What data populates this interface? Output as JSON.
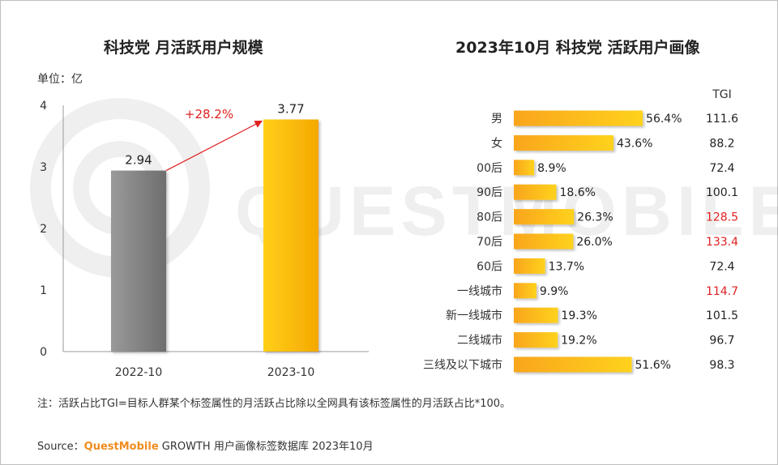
{
  "left": {
    "title": "科技党 月活跃用户规模",
    "unit": "单位：亿"
  },
  "right": {
    "title": "2023年10月 科技党 活跃用户画像",
    "tgi_header": "TGI"
  },
  "watermark": "QUESTMOBILE",
  "note": "注：活跃占比TGI=目标人群某个标签属性的月活跃占比除以全网具有该标签属性的月活跃占比*100。",
  "source": {
    "prefix": "Source：",
    "brand": "QuestMobile",
    "text": " GROWTH 用户画像标签数据库 2023年10月"
  },
  "colors": {
    "grey_bar": "#8c8c8c",
    "yellow_bar": "#ffc000",
    "orange": "#f5a623",
    "red": "#e02020"
  },
  "chart_data": [
    {
      "type": "bar",
      "title": "科技党 月活跃用户规模",
      "ylabel": "单位：亿",
      "categories": [
        "2022-10",
        "2023-10"
      ],
      "values": [
        2.94,
        3.77
      ],
      "value_labels": [
        "2.94",
        "3.77"
      ],
      "ylim": [
        0,
        4
      ],
      "yticks": [
        0,
        1,
        2,
        3,
        4
      ],
      "growth_annotation": "+28.2%"
    },
    {
      "type": "bar",
      "orientation": "horizontal",
      "title": "2023年10月 科技党 活跃用户画像",
      "categories": [
        "男",
        "女",
        "00后",
        "90后",
        "80后",
        "70后",
        "60后",
        "一线城市",
        "新一线城市",
        "二线城市",
        "三线及以下城市"
      ],
      "values": [
        56.4,
        43.6,
        8.9,
        18.6,
        26.3,
        26.0,
        13.7,
        9.9,
        19.3,
        19.2,
        51.6
      ],
      "value_labels": [
        "56.4%",
        "43.6%",
        "8.9%",
        "18.6%",
        "26.3%",
        "26.0%",
        "13.7%",
        "9.9%",
        "19.3%",
        "19.2%",
        "51.6%"
      ],
      "tgi": [
        "111.6",
        "88.2",
        "72.4",
        "100.1",
        "128.5",
        "133.4",
        "72.4",
        "114.7",
        "101.5",
        "96.7",
        "98.3"
      ],
      "tgi_highlight": [
        false,
        false,
        false,
        false,
        true,
        true,
        false,
        true,
        false,
        false,
        false
      ]
    }
  ]
}
